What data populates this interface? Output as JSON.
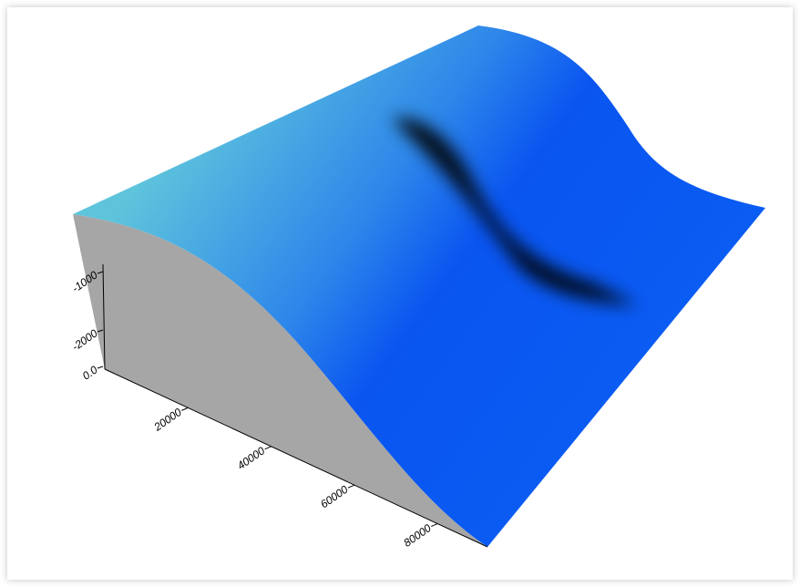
{
  "chart_data": {
    "type": "surface",
    "xlim": [
      0,
      92000
    ],
    "xticks": [
      20000,
      40000,
      60000,
      80000
    ],
    "zticks": [
      -1000,
      -2000,
      {
        "value": 0,
        "label": "0.0"
      }
    ],
    "colors": {
      "top": "#5ec4dc",
      "low": "#0a55f0",
      "trench": "#000000",
      "side": "#a6a6a6"
    }
  }
}
